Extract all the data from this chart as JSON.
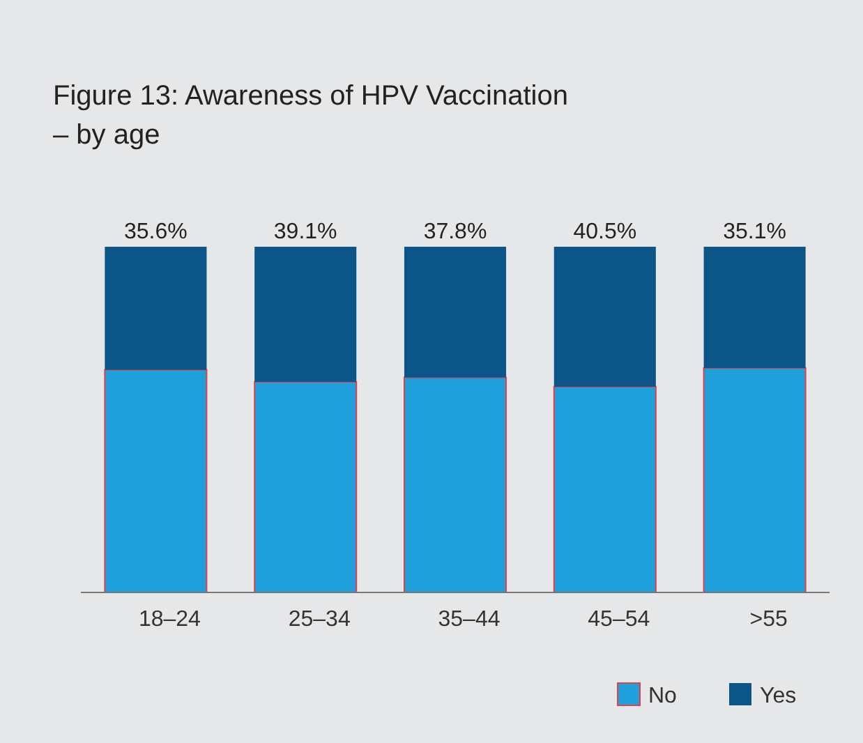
{
  "chart_data": {
    "type": "bar",
    "stacked": true,
    "title": "Figure 13: Awareness of HPV Vaccination\n– by age",
    "categories": [
      "18–24",
      "25–34",
      "35–44",
      "45–54",
      ">55"
    ],
    "ylim": [
      0,
      100
    ],
    "series": [
      {
        "name": "No",
        "color": "#1fa0da",
        "values": [
          64.4,
          60.9,
          62.2,
          59.5,
          64.9
        ]
      },
      {
        "name": "Yes",
        "color": "#0b5588",
        "values": [
          35.6,
          39.1,
          37.8,
          40.5,
          35.1
        ],
        "value_labels": [
          "35.6%",
          "39.1%",
          "37.8%",
          "40.5%",
          "35.1%"
        ]
      }
    ],
    "legend": "bottom right"
  }
}
